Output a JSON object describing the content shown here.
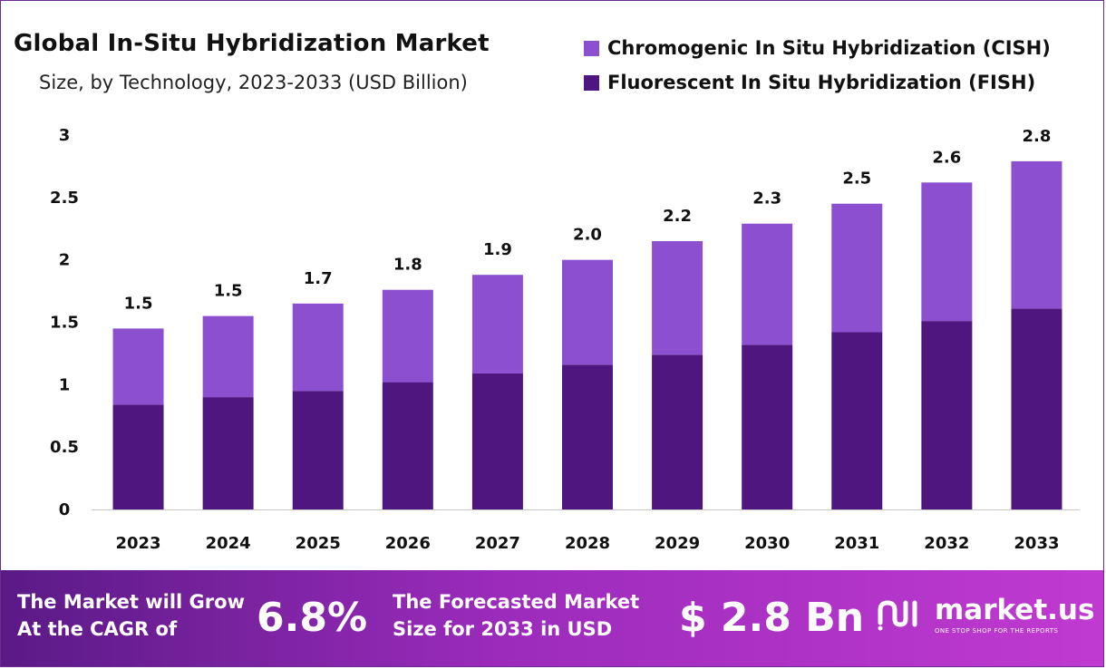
{
  "title": "Global In-Situ Hybridization Market",
  "subtitle": "Size, by Technology, 2023-2033 (USD Billion)",
  "legend": [
    {
      "label": "Chromogenic In Situ Hybridization (CISH)",
      "color": "#8b4fd0"
    },
    {
      "label": "Fluorescent In Situ Hybridization (FISH)",
      "color": "#4e167e"
    }
  ],
  "chart_data": {
    "type": "bar",
    "stacked": true,
    "categories": [
      "2023",
      "2024",
      "2025",
      "2026",
      "2027",
      "2028",
      "2029",
      "2030",
      "2031",
      "2032",
      "2033"
    ],
    "series": [
      {
        "name": "Fluorescent In Situ Hybridization (FISH)",
        "color": "#4e167e",
        "values": [
          0.84,
          0.9,
          0.95,
          1.02,
          1.09,
          1.16,
          1.24,
          1.32,
          1.42,
          1.51,
          1.61
        ]
      },
      {
        "name": "Chromogenic In Situ Hybridization (CISH)",
        "color": "#8b4fd0",
        "values": [
          0.61,
          0.65,
          0.7,
          0.74,
          0.79,
          0.84,
          0.91,
          0.97,
          1.03,
          1.11,
          1.18
        ]
      }
    ],
    "totals_labels": [
      "1.5",
      "1.5",
      "1.7",
      "1.8",
      "1.9",
      "2.0",
      "2.2",
      "2.3",
      "2.5",
      "2.6",
      "2.8"
    ],
    "y_ticks": [
      "0",
      "0.5",
      "1",
      "1.5",
      "2",
      "2.5",
      "3"
    ],
    "ylim": [
      0,
      3
    ],
    "xlabel": "",
    "ylabel": ""
  },
  "footer": {
    "cagr_text_line1": "The Market will Grow",
    "cagr_text_line2": "At the CAGR of",
    "cagr_value": "6.8%",
    "forecast_text_line1": "The Forecasted Market",
    "forecast_text_line2": "Size for 2033 in USD",
    "forecast_value": "$ 2.8 Bn",
    "logo_name": "market.us",
    "logo_tagline": "ONE STOP SHOP FOR THE REPORTS"
  }
}
